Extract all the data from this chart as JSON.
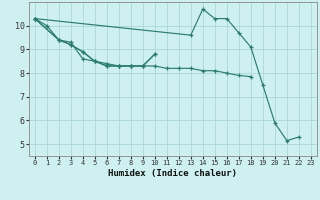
{
  "xlabel": "Humidex (Indice chaleur)",
  "background_color": "#cef0f0",
  "grid_color": "#aad8d4",
  "line_color": "#2d7d6e",
  "xlim": [
    -0.5,
    23.5
  ],
  "ylim": [
    4.5,
    11.0
  ],
  "xticks": [
    0,
    1,
    2,
    3,
    4,
    5,
    6,
    7,
    8,
    9,
    10,
    11,
    12,
    13,
    14,
    15,
    16,
    17,
    18,
    19,
    20,
    21,
    22,
    23
  ],
  "yticks": [
    5,
    6,
    7,
    8,
    9,
    10
  ],
  "line1_x": [
    0,
    1,
    2,
    3,
    4,
    5,
    6,
    7,
    8,
    9,
    10
  ],
  "line1_y": [
    10.3,
    10.0,
    9.4,
    9.3,
    8.6,
    8.5,
    8.3,
    8.3,
    8.3,
    8.3,
    8.8
  ],
  "line2_x": [
    0,
    2,
    3,
    4,
    5,
    6,
    7,
    8,
    9,
    10
  ],
  "line2_y": [
    10.3,
    9.4,
    9.2,
    8.9,
    8.5,
    8.3,
    8.3,
    8.3,
    8.3,
    8.8
  ],
  "line3_x": [
    0,
    2,
    3,
    4,
    5,
    6,
    7,
    8,
    9,
    10,
    11,
    12,
    13,
    14,
    15,
    16,
    17,
    18
  ],
  "line3_y": [
    10.3,
    9.4,
    9.2,
    8.9,
    8.5,
    8.4,
    8.3,
    8.3,
    8.3,
    8.3,
    8.2,
    8.2,
    8.2,
    8.1,
    8.1,
    8.0,
    7.9,
    7.85
  ],
  "line4_x": [
    0,
    13,
    14,
    15,
    16,
    17,
    18,
    19,
    20,
    21,
    22
  ],
  "line4_y": [
    10.3,
    9.6,
    10.7,
    10.3,
    10.3,
    9.7,
    9.1,
    7.5,
    5.9,
    5.15,
    5.3
  ]
}
